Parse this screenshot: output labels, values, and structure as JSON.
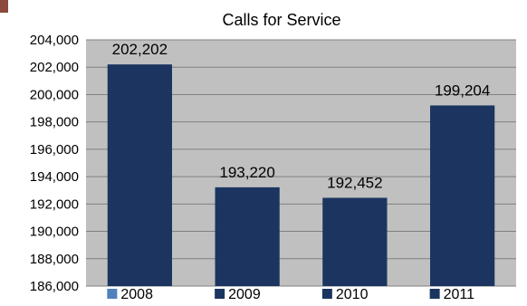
{
  "chart_data": {
    "type": "bar",
    "title": "Calls for Service",
    "categories": [
      "2008",
      "2009",
      "2010",
      "2011"
    ],
    "values": [
      202202,
      193220,
      192452,
      199204
    ],
    "data_labels": [
      "202,202",
      "193,220",
      "192,452",
      "199,204"
    ],
    "legend": [
      "2008",
      "2009",
      "2010",
      "2011"
    ],
    "legend_position": "bottom",
    "ylim": [
      186000,
      204000
    ],
    "y_ticks": [
      186000,
      188000,
      190000,
      192000,
      194000,
      196000,
      198000,
      200000,
      202000,
      204000
    ],
    "y_tick_labels": [
      "186,000",
      "188,000",
      "190,000",
      "192,000",
      "194,000",
      "196,000",
      "198,000",
      "200,000",
      "202,000",
      "204,000"
    ],
    "grid": true,
    "xlabel": "",
    "ylabel": ""
  },
  "colors": {
    "bar": "#1b3560",
    "legend_2008": "#4f81bd",
    "legend_other": "#1b3560",
    "plot_background": "#c0c0c0",
    "gridline": "#808080",
    "corner_mark": "#8b4a3c"
  }
}
